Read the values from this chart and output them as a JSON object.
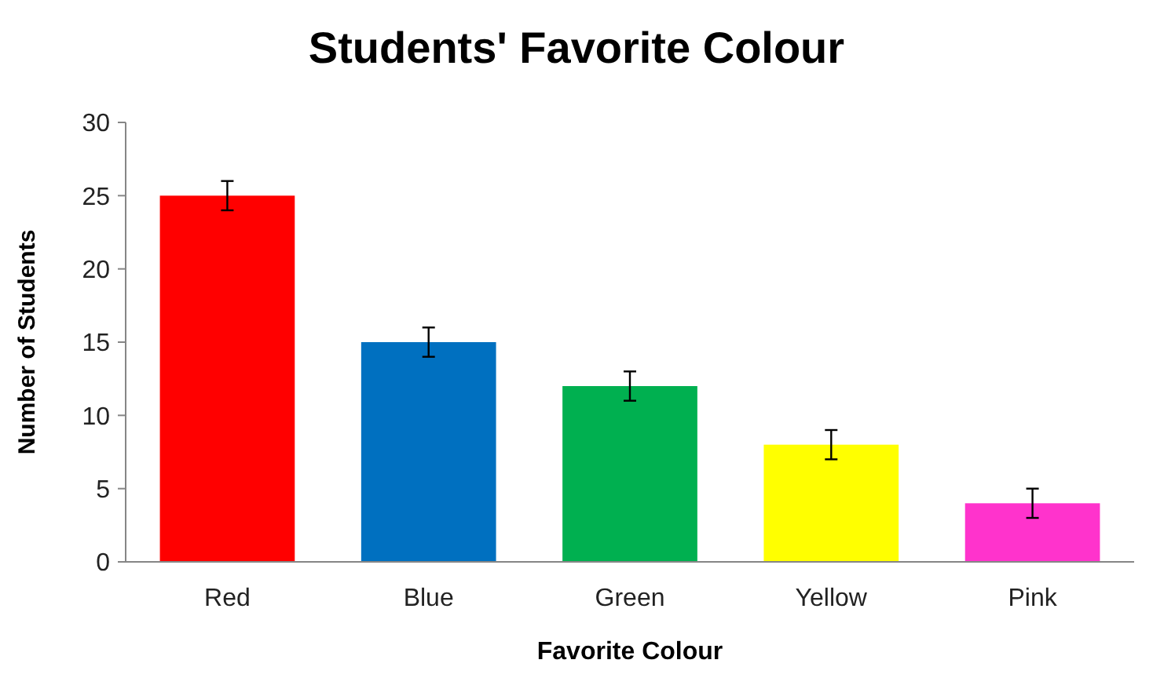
{
  "chart_data": {
    "type": "bar",
    "title": "Students' Favorite Colour",
    "xlabel": "Favorite Colour",
    "ylabel": "Number of Students",
    "categories": [
      "Red",
      "Blue",
      "Green",
      "Yellow",
      "Pink"
    ],
    "values": [
      25,
      15,
      12,
      8,
      4
    ],
    "colors": [
      "#ff0000",
      "#0070c0",
      "#00b050",
      "#ffff00",
      "#ff33cc"
    ],
    "errors": [
      1,
      1,
      1,
      1,
      1
    ],
    "ylim": [
      0,
      30
    ],
    "yticks": [
      0,
      5,
      10,
      15,
      20,
      25,
      30
    ]
  }
}
